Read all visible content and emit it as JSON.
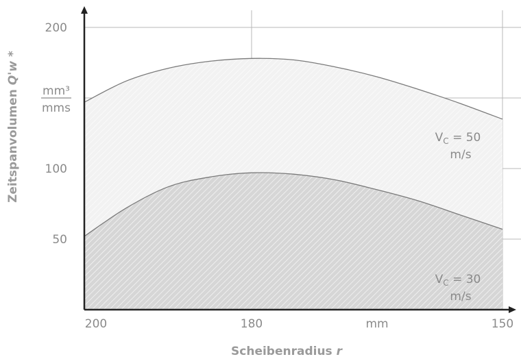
{
  "chart_data": {
    "type": "area",
    "xlabel": "Scheibenradius",
    "xlabel_var": "r",
    "ylabel": "Zeitspanvolumen",
    "ylabel_var": "Q'w",
    "ylabel_suffix": "*",
    "yunit_num": "mm³",
    "yunit_den": "mms",
    "x_ticks": [
      "200",
      "180",
      "mm",
      "150"
    ],
    "y_ticks": [
      "200",
      "100",
      "50"
    ],
    "xlim": [
      200,
      150
    ],
    "ylim": [
      0,
      200
    ],
    "grid": true,
    "colors": {
      "upper": "#f2f2f2",
      "lower": "#d6d6d6",
      "line": "#7a7a7a",
      "grid": "#b8b8b8"
    },
    "series": [
      {
        "label_main": "V",
        "label_sub": "C",
        "label_rest": " = 50",
        "label_unit": "m/s",
        "x": [
          200,
          195,
          190,
          185,
          180,
          175,
          170,
          165,
          160,
          155,
          150
        ],
        "y": [
          147,
          162,
          171,
          176,
          178,
          177,
          172,
          165,
          156,
          146,
          135
        ]
      },
      {
        "label_main": "V",
        "label_sub": "C",
        "label_rest": " = 30",
        "label_unit": "m/s",
        "x": [
          200,
          195,
          190,
          185,
          180,
          175,
          170,
          165,
          160,
          155,
          150
        ],
        "y": [
          52,
          72,
          87,
          94,
          97,
          96,
          92,
          85,
          77,
          67,
          57
        ]
      }
    ]
  }
}
